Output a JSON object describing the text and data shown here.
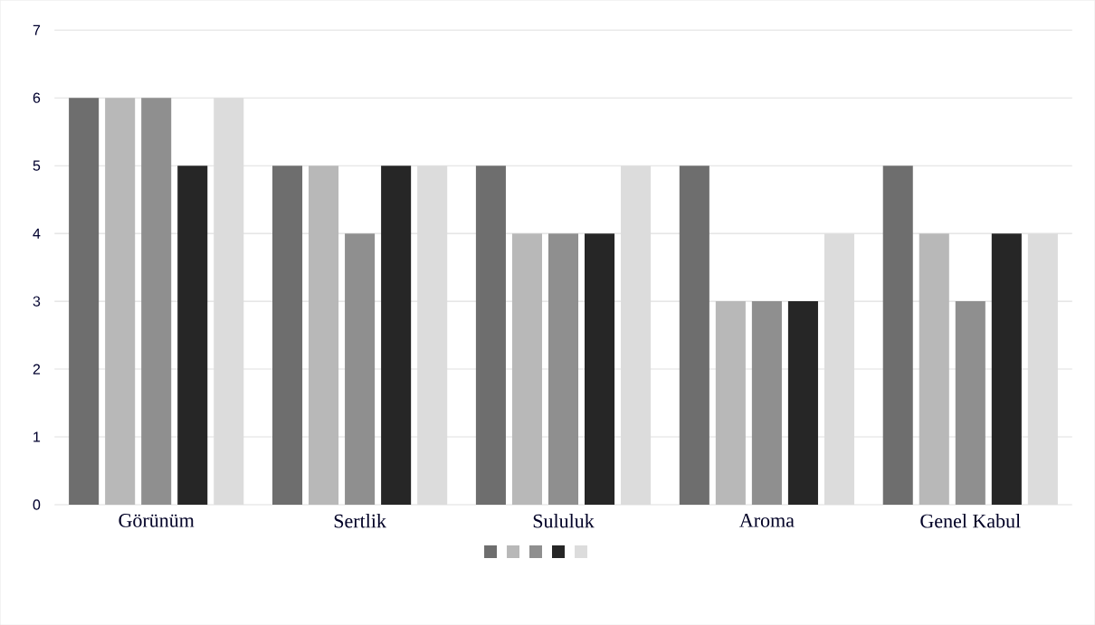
{
  "chart_data": {
    "type": "bar",
    "categories": [
      "Görünüm",
      "Sertlik",
      "Sululuk",
      "Aroma",
      "Genel Kabul"
    ],
    "series": [
      {
        "color": "#6e6e6e",
        "values": [
          6,
          5,
          5,
          5,
          5
        ]
      },
      {
        "color": "#b8b8b8",
        "values": [
          6,
          5,
          4,
          3,
          4
        ]
      },
      {
        "color": "#8f8f8f",
        "values": [
          6,
          4,
          4,
          3,
          3
        ]
      },
      {
        "color": "#262626",
        "values": [
          5,
          5,
          4,
          3,
          4
        ]
      },
      {
        "color": "#dcdcdc",
        "values": [
          6,
          5,
          5,
          4,
          4
        ]
      }
    ],
    "ylim": [
      0,
      7
    ],
    "yticks": [
      0,
      1,
      2,
      3,
      4,
      5,
      6,
      7
    ],
    "grid": "y"
  }
}
